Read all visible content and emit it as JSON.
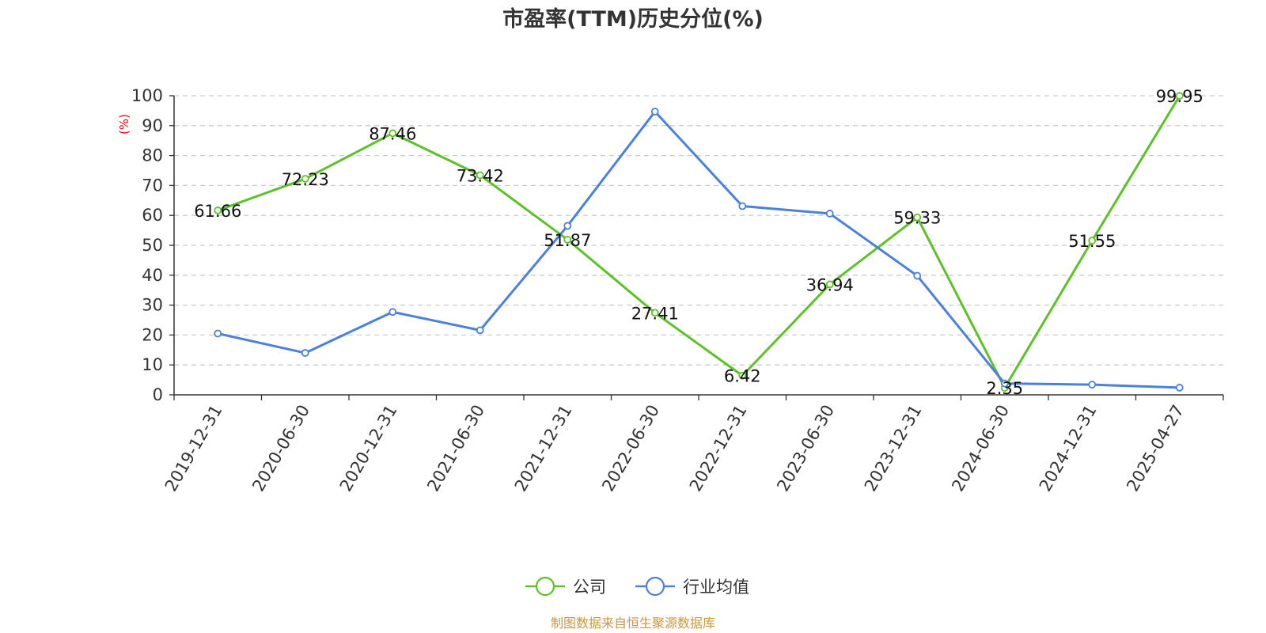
{
  "chart_data": {
    "type": "line",
    "title": "市盈率(TTM)历史分位(%)",
    "ylabel": "(%)",
    "xlabel": "",
    "ylim": [
      0,
      100
    ],
    "yticks": [
      0,
      10,
      20,
      30,
      40,
      50,
      60,
      70,
      80,
      90,
      100
    ],
    "grid": true,
    "legend_position": "bottom-center",
    "categories": [
      "2019-12-31",
      "2020-06-30",
      "2020-12-31",
      "2021-06-30",
      "2021-12-31",
      "2022-06-30",
      "2022-12-31",
      "2023-06-30",
      "2023-12-31",
      "2024-06-30",
      "2024-12-31",
      "2025-04-27"
    ],
    "series": [
      {
        "name": "公司",
        "color": "#5cc227",
        "show_labels": true,
        "values": [
          61.66,
          72.23,
          87.46,
          73.42,
          51.87,
          27.41,
          6.42,
          36.94,
          59.33,
          2.35,
          51.55,
          99.95
        ],
        "labels": [
          "61.66",
          "72.23",
          "87.46",
          "73.42",
          "51.87",
          "27.41",
          "6.42",
          "36.94",
          "59.33",
          "2.35",
          "51.55",
          "99.95"
        ]
      },
      {
        "name": "行业均值",
        "color": "#4b80dc",
        "show_labels": false,
        "values": [
          20.5,
          14.0,
          27.7,
          21.6,
          56.5,
          94.7,
          63.1,
          60.6,
          39.8,
          3.8,
          3.4,
          2.4
        ]
      }
    ],
    "source": "制图数据来自恒生聚源数据库"
  }
}
